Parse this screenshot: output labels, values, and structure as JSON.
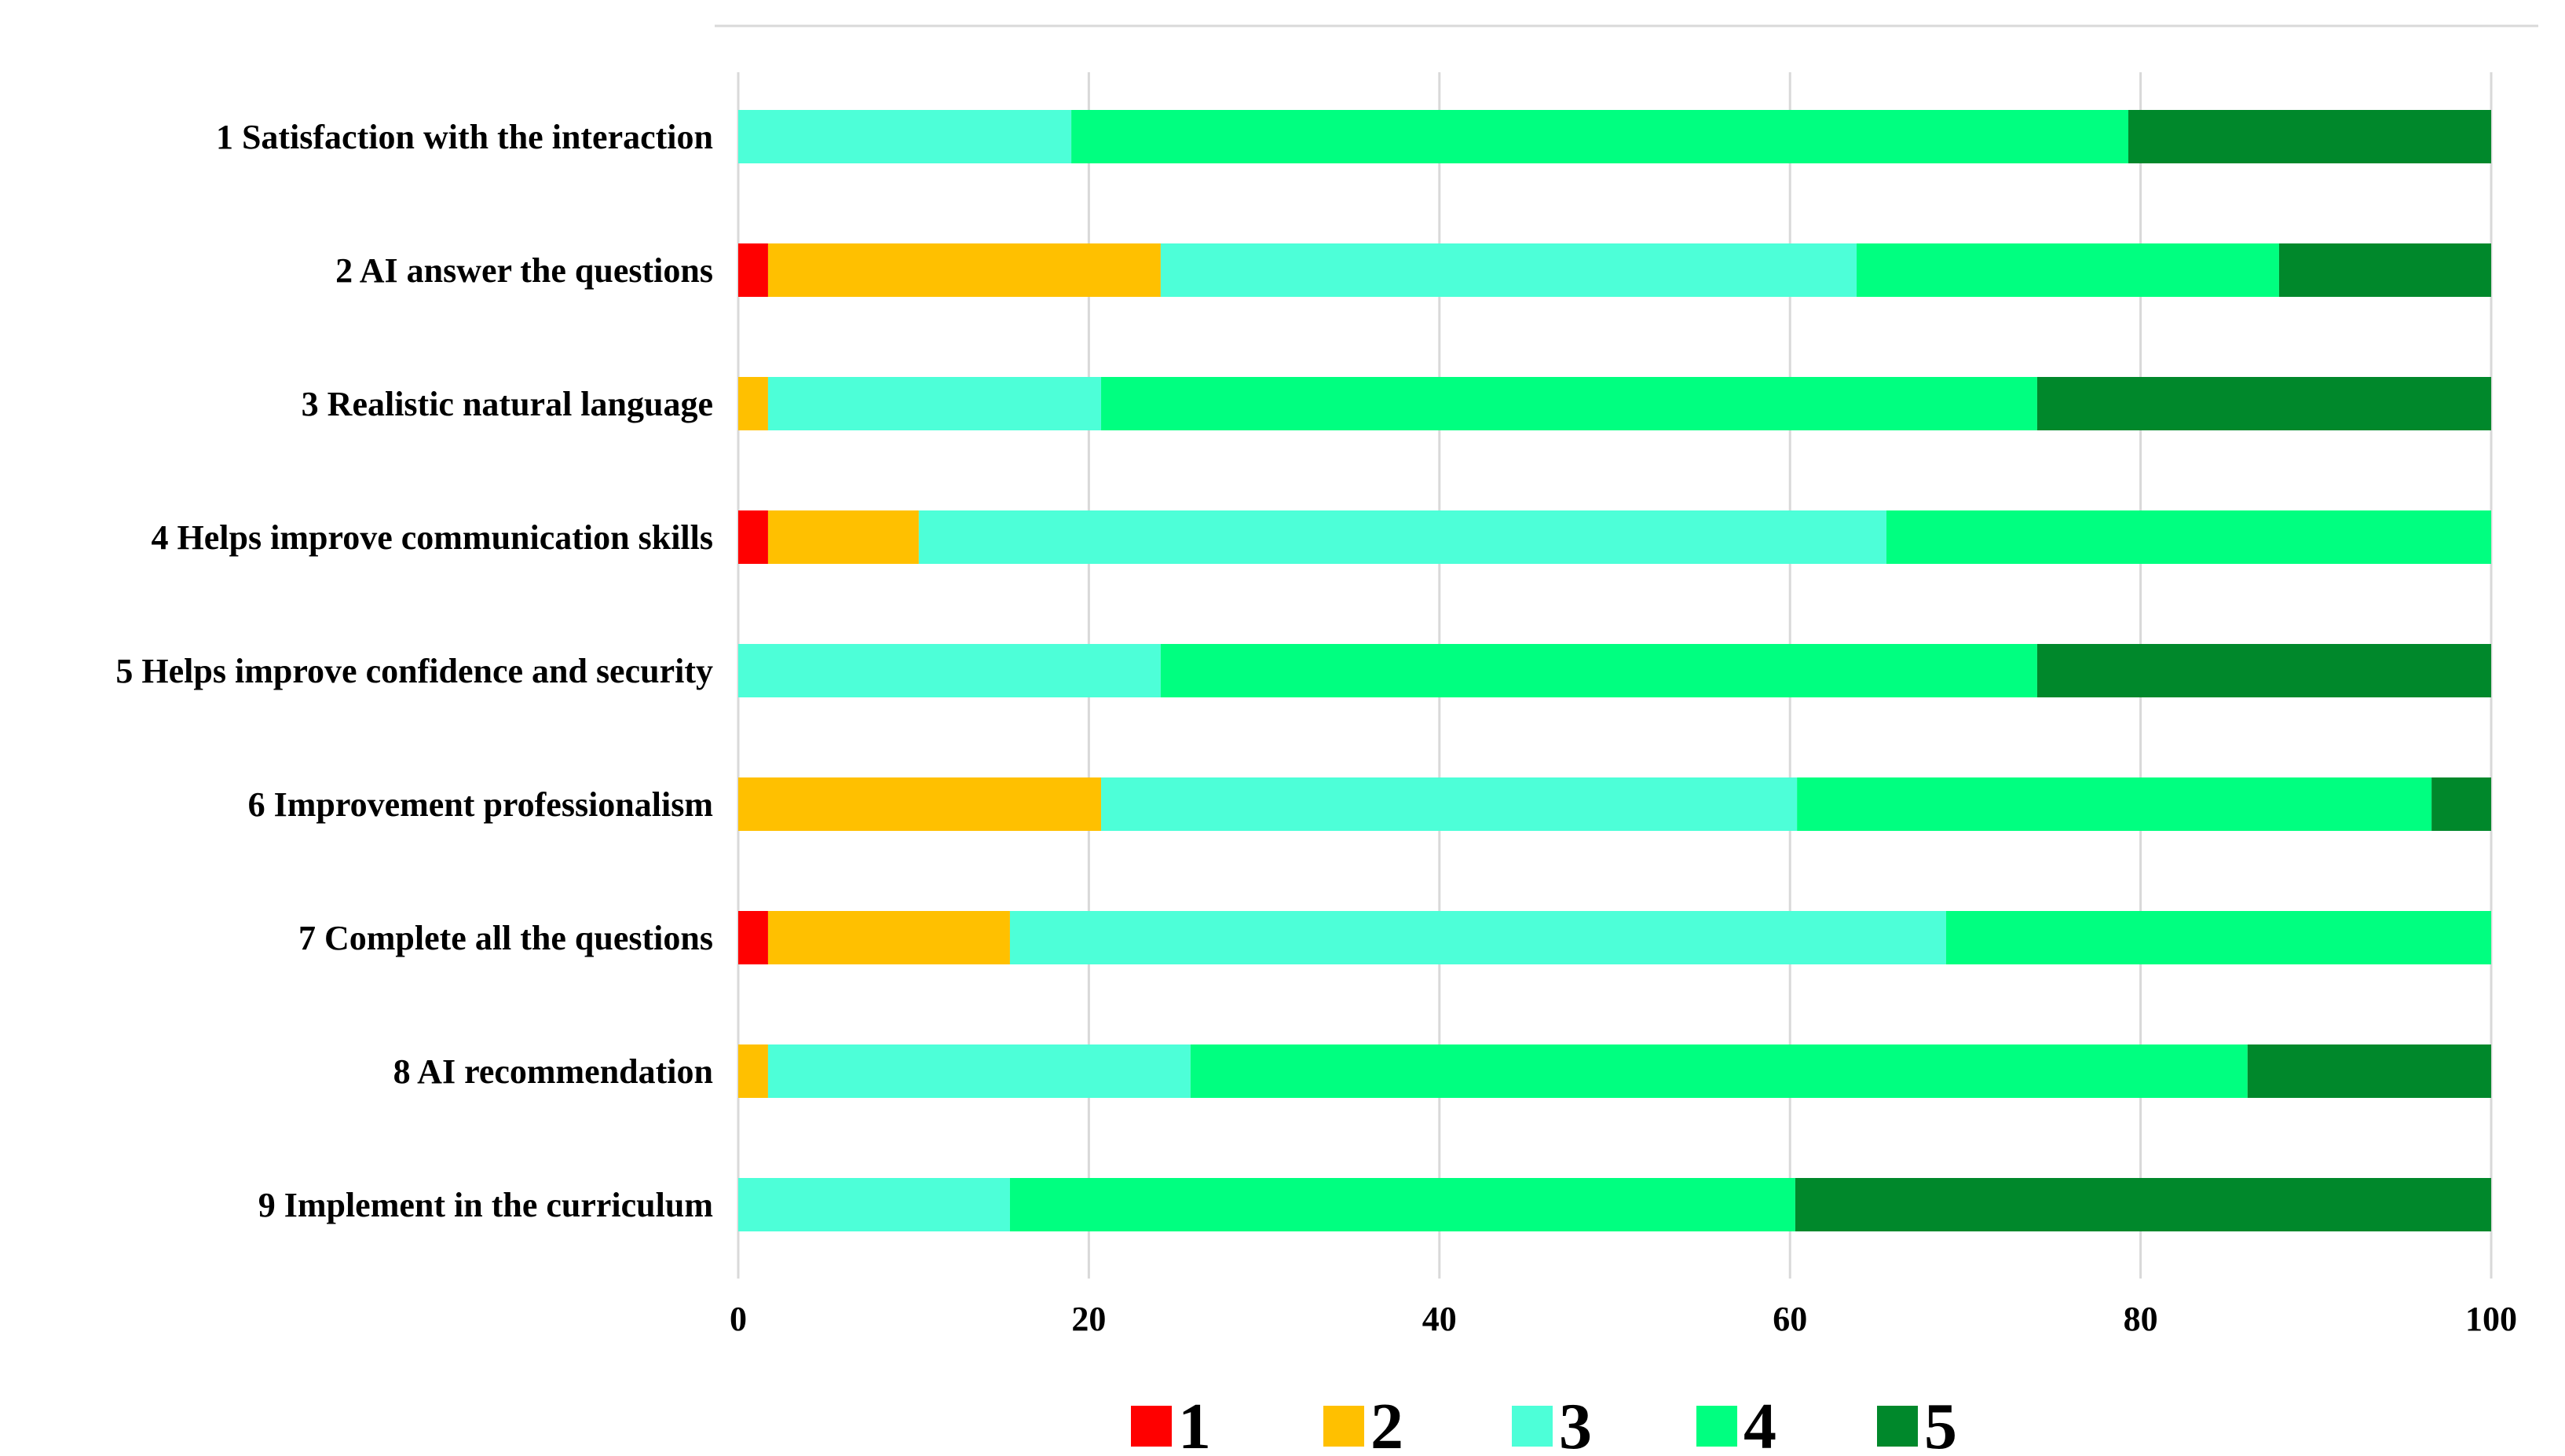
{
  "chart_data": {
    "type": "bar",
    "orientation": "horizontal",
    "stacked": true,
    "title": "",
    "xlabel": "",
    "ylabel": "",
    "xlim": [
      0,
      100
    ],
    "x_ticks": [
      0,
      20,
      40,
      60,
      80,
      100
    ],
    "grid": true,
    "legend_position": "bottom",
    "categories": [
      "1 Satisfaction with the interaction",
      "2 AI answer the questions",
      "3 Realistic natural language",
      "4 Helps improve communication skills",
      "5 Helps improve confidence and security",
      "6 Improvement professionalism",
      "7 Complete all the questions",
      "8 AI recommendation",
      "9 Implement in the curriculum"
    ],
    "series": [
      {
        "name": "1",
        "color": "#ff0000",
        "values": [
          0,
          1.7,
          0,
          1.7,
          0,
          0,
          1.7,
          0,
          0
        ]
      },
      {
        "name": "2",
        "color": "#ffc000",
        "values": [
          0,
          22.4,
          1.7,
          8.6,
          0,
          20.7,
          13.8,
          1.7,
          0
        ]
      },
      {
        "name": "3",
        "color": "#4dffd8",
        "values": [
          19.0,
          39.7,
          19.0,
          55.2,
          24.1,
          39.7,
          53.4,
          24.1,
          15.5
        ]
      },
      {
        "name": "4",
        "color": "#00ff80",
        "values": [
          60.3,
          24.1,
          53.4,
          34.5,
          50.0,
          36.2,
          31.1,
          60.3,
          44.8
        ]
      },
      {
        "name": "5",
        "color": "#00882b",
        "values": [
          20.7,
          12.1,
          25.9,
          0,
          25.9,
          3.4,
          0,
          13.9,
          39.7
        ]
      }
    ]
  }
}
